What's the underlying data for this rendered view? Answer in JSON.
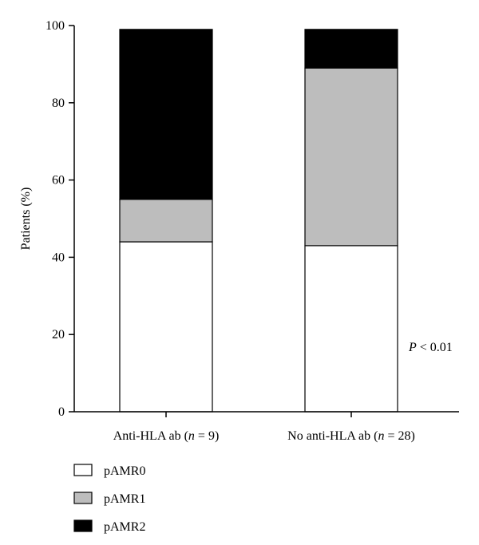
{
  "chart_data": {
    "type": "bar",
    "stacked": true,
    "ylabel": "Patients (%)",
    "xlabel": "",
    "ylim": [
      0,
      100
    ],
    "yticks": [
      0,
      20,
      40,
      60,
      80,
      100
    ],
    "categories": [
      {
        "prefix": "Anti-HLA ab (",
        "var": "n",
        "suffix": " = 9)"
      },
      {
        "prefix": "No anti-HLA ab (",
        "var": "n",
        "suffix": " = 28)"
      }
    ],
    "series": [
      {
        "name": "pAMR0",
        "color": "#ffffff",
        "values": [
          44,
          43
        ]
      },
      {
        "name": "pAMR1",
        "color": "#bdbdbd",
        "values": [
          11,
          46
        ]
      },
      {
        "name": "pAMR2",
        "color": "#000000",
        "values": [
          44,
          10
        ]
      }
    ],
    "annotation": {
      "var": "P",
      "rest": " < 0.01"
    },
    "grid": false,
    "legend_position": "bottom-left"
  }
}
